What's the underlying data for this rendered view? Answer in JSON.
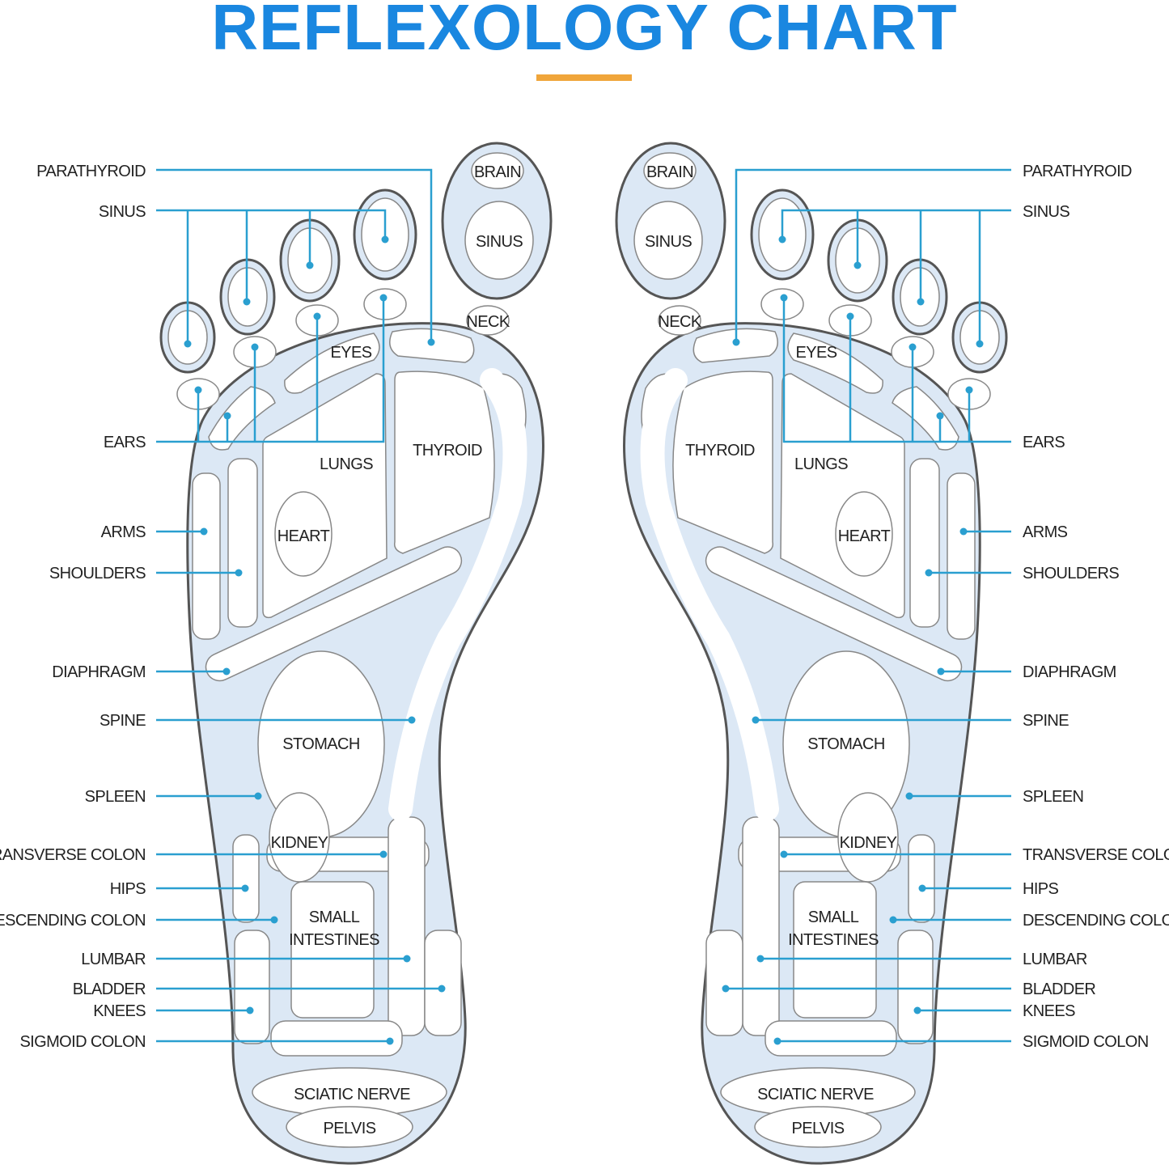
{
  "title": "REFLEXOLOGY CHART",
  "colors": {
    "title": "#1a87e0",
    "accent_rule": "#f0a53a",
    "callout_line": "#2a9fd0",
    "zone_fill": "#dce8f5",
    "outline": "#555555"
  },
  "callouts": [
    "PARATHYROID",
    "SINUS",
    "EARS",
    "ARMS",
    "SHOULDERS",
    "DIAPHRAGM",
    "SPINE",
    "SPLEEN",
    "TRANSVERSE COLON",
    "HIPS",
    "DESCENDING COLON",
    "LUMBAR",
    "BLADDER",
    "KNEES",
    "SIGMOID COLON"
  ],
  "zones": {
    "brain": "BRAIN",
    "sinus": "SINUS",
    "neck": "NECK",
    "eyes": "EYES",
    "thyroid": "THYROID",
    "lungs": "LUNGS",
    "heart": "HEART",
    "stomach": "STOMACH",
    "kidney": "KIDNEY",
    "small_intestines": [
      "SMALL",
      "INTESTINES"
    ],
    "sciatic_nerve": "SCIATIC NERVE",
    "pelvis": "PELVIS"
  }
}
